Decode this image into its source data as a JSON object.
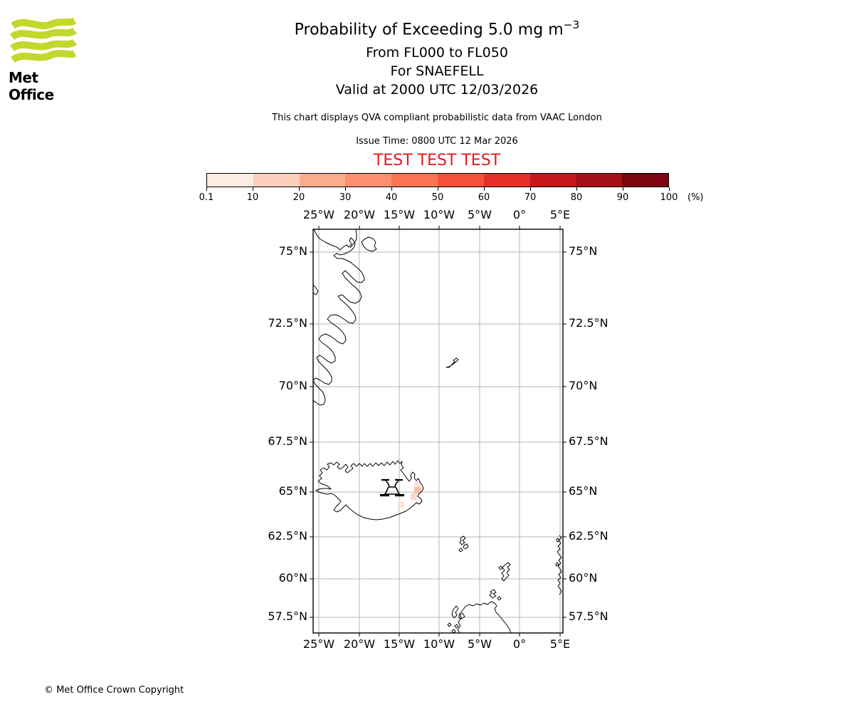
{
  "logo": {
    "brand": "Met Office",
    "wave_color": "#c3d82d"
  },
  "header": {
    "title_main": "Probability of Exceeding 5.0 mg m",
    "title_superscript": "−3",
    "subtitle_levels": "From FL000 to FL050",
    "subtitle_volcano": "For SNAEFELL",
    "subtitle_valid": "Valid at 2000 UTC 12/03/2026",
    "disclaimer": "This chart displays QVA compliant probabilistic data from VAAC London",
    "issue_time": "Issue Time: 0800 UTC 12 Mar 2026",
    "test_banner": "TEST TEST TEST",
    "test_banner_color": "#e11a1a"
  },
  "colorbar": {
    "unit": "(%)",
    "tick_labels": [
      "0.1",
      "10",
      "20",
      "30",
      "40",
      "50",
      "60",
      "70",
      "80",
      "90",
      "100"
    ],
    "segment_colors": [
      "#fdece2",
      "#fbd0bc",
      "#fcab8e",
      "#fc9071",
      "#fb7353",
      "#f4503a",
      "#e32f27",
      "#c5171c",
      "#a31016",
      "#7c0510"
    ]
  },
  "map": {
    "lon_labels": [
      "25°W",
      "20°W",
      "15°W",
      "10°W",
      "5°W",
      "0°",
      "5°E"
    ],
    "lat_labels": [
      "75°N",
      "72.5°N",
      "70°N",
      "67.5°N",
      "65°N",
      "62.5°N",
      "60°N",
      "57.5°N"
    ]
  },
  "footer": {
    "copyright": "© Met Office Crown Copyright"
  },
  "chart_data": {
    "type": "heatmap",
    "title": "Probability of Exceeding 5.0 mg m⁻³",
    "flight_levels": "FL000 to FL050",
    "volcano": {
      "name": "SNAEFELL",
      "marker_lon": -15.9,
      "marker_lat": 65.1
    },
    "valid_time": "2000 UTC 12/03/2026",
    "issue_time": "0800 UTC 12 Mar 2026",
    "source": "VAAC London",
    "projection": "Mercator",
    "grid": true,
    "x_axis": {
      "type": "longitude",
      "ticks": [
        -25,
        -20,
        -15,
        -10,
        -5,
        0,
        5
      ],
      "range": [
        -25.8,
        5.4
      ]
    },
    "y_axis": {
      "type": "latitude",
      "ticks": [
        75,
        72.5,
        70,
        67.5,
        65,
        62.5,
        60,
        57.5
      ],
      "range": [
        56.4,
        75.7
      ]
    },
    "legend": {
      "label": "(%)",
      "bin_edges_percent": [
        0.1,
        10,
        20,
        30,
        40,
        50,
        60,
        70,
        80,
        90,
        100
      ],
      "colors": [
        "#fdece2",
        "#fbd0bc",
        "#fcab8e",
        "#fc9071",
        "#fb7353",
        "#f4503a",
        "#e32f27",
        "#c5171c",
        "#a31016",
        "#7c0510"
      ]
    },
    "cells": [
      {
        "lon": -12.7,
        "lat": 65.4,
        "bin_percent": "0.1-10"
      },
      {
        "lon": -12.7,
        "lat": 65.1,
        "bin_percent": "10-20"
      },
      {
        "lon": -13.2,
        "lat": 64.7,
        "bin_percent": "0.1-10"
      },
      {
        "lon": -14.8,
        "lat": 64.3,
        "bin_percent": "0.1-10"
      }
    ]
  }
}
